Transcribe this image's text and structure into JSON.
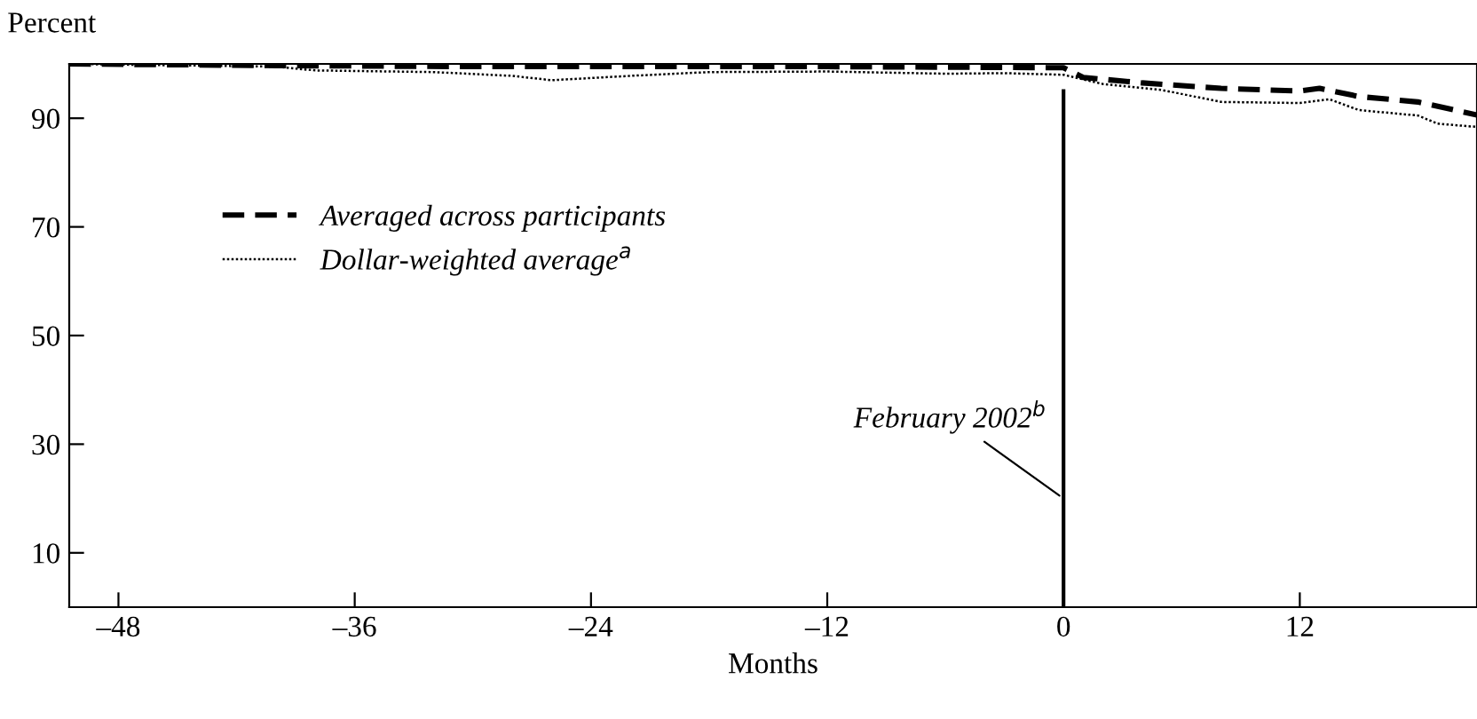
{
  "chart_data": {
    "type": "line",
    "ylabel": "Percent",
    "xlabel": "Months",
    "xlim": [
      -50.5,
      21
    ],
    "ylim": [
      0,
      100
    ],
    "xticks": [
      {
        "value": -48,
        "label": "–48"
      },
      {
        "value": -36,
        "label": "–36"
      },
      {
        "value": -24,
        "label": "–24"
      },
      {
        "value": -12,
        "label": "–12"
      },
      0,
      12
    ],
    "yticks": [
      10,
      30,
      50,
      70,
      90
    ],
    "grid": false,
    "legend": "left",
    "series": [
      {
        "name": "Averaged across participants",
        "color": "#000000",
        "line_style": "dashed",
        "x": [
          -50.5,
          -40,
          -30,
          -12,
          0,
          1,
          4,
          8,
          12,
          13,
          15,
          18,
          21
        ],
        "values": [
          100,
          99.7,
          99.5,
          99.5,
          99.3,
          97.5,
          96.5,
          95.5,
          95,
          95.5,
          94,
          93,
          90.6
        ]
      },
      {
        "name": "Dollar-weighted average$^{a}$",
        "color": "#000000",
        "line_style": "dotted",
        "x": [
          -50.5,
          -40,
          -38,
          -32,
          -28,
          -26,
          -22,
          -18,
          -12,
          -6,
          -3,
          0,
          2,
          5,
          8,
          12,
          13.5,
          15,
          18,
          19,
          21
        ],
        "values": [
          100,
          99.5,
          98.8,
          98.5,
          97.8,
          97,
          97.8,
          98.5,
          98.6,
          98.2,
          98.3,
          98,
          96.3,
          95.2,
          93,
          92.8,
          93.5,
          91.5,
          90.5,
          89,
          88.4
        ]
      }
    ],
    "ref_lines": [
      {
        "axis": "x",
        "value": 0,
        "color": "#000000"
      }
    ],
    "annotations": [
      {
        "text": "February 2002$^{b}$",
        "x": 0,
        "y": 20
      }
    ]
  }
}
